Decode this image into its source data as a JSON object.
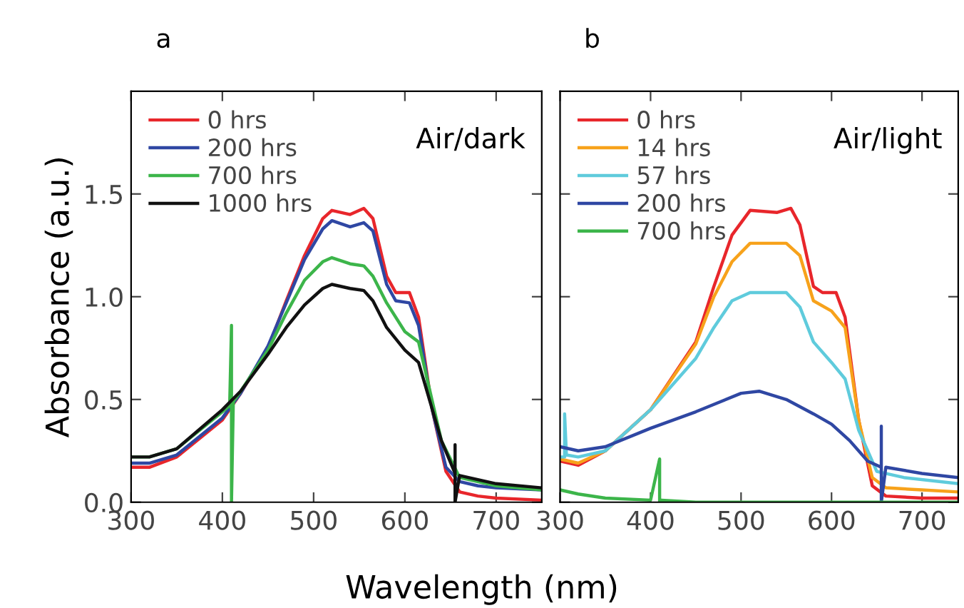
{
  "chart_data": [
    {
      "type": "line",
      "title": "a",
      "xlabel": "Wavelength (nm)",
      "ylabel": "Absorbance (a.u.)",
      "xlim": [
        300,
        750
      ],
      "ylim": [
        0,
        2.0
      ],
      "xticks": [
        300,
        400,
        500,
        600,
        700
      ],
      "yticks": [
        {
          "value": 0,
          "label": "0.0"
        },
        0.5,
        {
          "value": 1,
          "label": "1.0"
        },
        1.5
      ],
      "legend": "top left",
      "grid": false,
      "annotations": [
        "Air/dark"
      ],
      "series": [
        {
          "name": "0 hrs",
          "color": "#e8262b",
          "x": [
            300,
            320,
            350,
            400,
            420,
            450,
            470,
            490,
            510,
            520,
            540,
            555,
            565,
            580,
            590,
            605,
            615,
            630,
            645,
            660,
            680,
            700,
            750
          ],
          "values": [
            0.17,
            0.17,
            0.22,
            0.4,
            0.53,
            0.75,
            0.98,
            1.2,
            1.38,
            1.42,
            1.4,
            1.43,
            1.38,
            1.1,
            1.02,
            1.02,
            0.9,
            0.45,
            0.15,
            0.05,
            0.03,
            0.02,
            0.01
          ]
        },
        {
          "name": "200 hrs",
          "color": "#2f47a3",
          "x": [
            300,
            320,
            350,
            400,
            420,
            450,
            470,
            490,
            510,
            520,
            540,
            555,
            565,
            580,
            590,
            605,
            615,
            630,
            645,
            660,
            680,
            700,
            750
          ],
          "values": [
            0.19,
            0.19,
            0.23,
            0.41,
            0.53,
            0.76,
            0.97,
            1.18,
            1.33,
            1.37,
            1.34,
            1.36,
            1.32,
            1.06,
            0.98,
            0.97,
            0.86,
            0.45,
            0.17,
            0.1,
            0.08,
            0.07,
            0.06
          ]
        },
        {
          "name": "700 hrs",
          "color": "#3cb54a",
          "x": [
            300,
            320,
            350,
            400,
            408,
            410,
            410,
            412,
            420,
            450,
            470,
            490,
            510,
            520,
            540,
            555,
            565,
            580,
            600,
            615,
            640,
            660,
            700,
            750
          ],
          "values": [
            0.22,
            0.22,
            0.26,
            0.44,
            0.47,
            0.86,
            0.0,
            0.49,
            0.54,
            0.74,
            0.92,
            1.08,
            1.17,
            1.19,
            1.16,
            1.15,
            1.1,
            0.97,
            0.83,
            0.78,
            0.3,
            0.12,
            0.08,
            0.06
          ]
        },
        {
          "name": "1000 hrs",
          "color": "#111111",
          "x": [
            300,
            320,
            350,
            400,
            420,
            450,
            470,
            490,
            510,
            520,
            540,
            555,
            565,
            580,
            600,
            615,
            640,
            655,
            655,
            655,
            660,
            700,
            750
          ],
          "values": [
            0.22,
            0.22,
            0.26,
            0.45,
            0.54,
            0.72,
            0.85,
            0.96,
            1.04,
            1.06,
            1.04,
            1.03,
            0.98,
            0.85,
            0.74,
            0.68,
            0.3,
            0.14,
            0.28,
            0.0,
            0.13,
            0.09,
            0.07
          ]
        }
      ]
    },
    {
      "type": "line",
      "title": "b",
      "xlim": [
        300,
        740
      ],
      "ylim": [
        0,
        2.0
      ],
      "xticks": [
        300,
        400,
        500,
        600,
        700
      ],
      "yticks": [
        0,
        0.5,
        1,
        1.5
      ],
      "tick_labels": "x",
      "legend": "top left",
      "grid": false,
      "annotations": [
        "Air/light"
      ],
      "series": [
        {
          "name": "0 hrs",
          "color": "#e8262b",
          "x": [
            300,
            320,
            350,
            400,
            450,
            470,
            490,
            510,
            540,
            555,
            565,
            580,
            590,
            605,
            615,
            630,
            645,
            660,
            700,
            740
          ],
          "values": [
            0.2,
            0.18,
            0.25,
            0.45,
            0.78,
            1.05,
            1.3,
            1.42,
            1.41,
            1.43,
            1.35,
            1.05,
            1.02,
            1.02,
            0.9,
            0.4,
            0.08,
            0.03,
            0.02,
            0.02
          ]
        },
        {
          "name": "14 hrs",
          "color": "#f7a21b",
          "x": [
            300,
            320,
            350,
            400,
            450,
            470,
            490,
            510,
            550,
            565,
            580,
            600,
            615,
            630,
            645,
            660,
            700,
            740
          ],
          "values": [
            0.21,
            0.19,
            0.25,
            0.45,
            0.77,
            1.0,
            1.17,
            1.26,
            1.26,
            1.2,
            0.98,
            0.93,
            0.85,
            0.4,
            0.12,
            0.07,
            0.06,
            0.05
          ]
        },
        {
          "name": "57 hrs",
          "color": "#5fcbdc",
          "x": [
            300,
            305,
            305,
            307,
            320,
            350,
            400,
            450,
            470,
            490,
            510,
            550,
            565,
            580,
            600,
            615,
            630,
            650,
            680,
            740
          ],
          "values": [
            0.22,
            0.22,
            0.43,
            0.23,
            0.22,
            0.25,
            0.45,
            0.7,
            0.85,
            0.98,
            1.02,
            1.02,
            0.95,
            0.78,
            0.68,
            0.6,
            0.35,
            0.15,
            0.12,
            0.09
          ]
        },
        {
          "name": "200 hrs",
          "color": "#2f47a3",
          "x": [
            300,
            320,
            350,
            400,
            450,
            500,
            520,
            550,
            580,
            600,
            620,
            640,
            655,
            655,
            655,
            660,
            700,
            740
          ],
          "values": [
            0.27,
            0.25,
            0.27,
            0.36,
            0.44,
            0.53,
            0.54,
            0.5,
            0.43,
            0.38,
            0.3,
            0.2,
            0.17,
            0.37,
            0.0,
            0.17,
            0.14,
            0.12
          ]
        },
        {
          "name": "700 hrs",
          "color": "#3cb54a",
          "x": [
            300,
            320,
            350,
            400,
            410,
            410,
            412,
            450,
            740
          ],
          "values": [
            0.06,
            0.04,
            0.02,
            0.01,
            0.21,
            0.0,
            0.01,
            0.0,
            0.0
          ]
        }
      ]
    }
  ]
}
